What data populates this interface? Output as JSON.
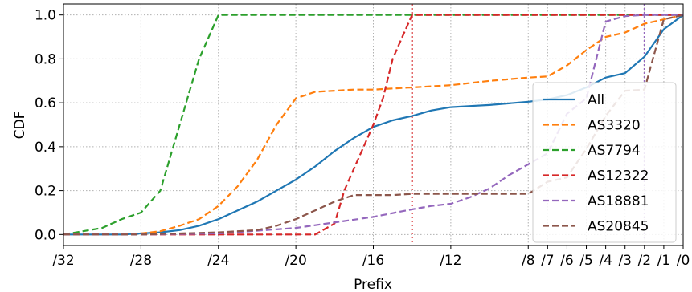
{
  "chart_data": {
    "type": "line",
    "xlabel": "Prefix",
    "ylabel": "CDF",
    "xlim": [
      32,
      0
    ],
    "ylim": [
      -0.05,
      1.05
    ],
    "grid": true,
    "legend_position": "lower-right",
    "x_ticks": [
      {
        "value": 32,
        "label": "/32"
      },
      {
        "value": 28,
        "label": "/28"
      },
      {
        "value": 24,
        "label": "/24"
      },
      {
        "value": 20,
        "label": "/20"
      },
      {
        "value": 16,
        "label": "/16"
      },
      {
        "value": 12,
        "label": "/12"
      },
      {
        "value": 8,
        "label": "/8"
      },
      {
        "value": 7,
        "label": "/7"
      },
      {
        "value": 6,
        "label": "/6"
      },
      {
        "value": 5,
        "label": "/5"
      },
      {
        "value": 4,
        "label": "/4"
      },
      {
        "value": 3,
        "label": "/3"
      },
      {
        "value": 2,
        "label": "/2"
      },
      {
        "value": 1,
        "label": "/1"
      },
      {
        "value": 0,
        "label": "/0"
      }
    ],
    "y_ticks": [
      {
        "value": 0.0,
        "label": "0.0"
      },
      {
        "value": 0.2,
        "label": "0.2"
      },
      {
        "value": 0.4,
        "label": "0.4"
      },
      {
        "value": 0.6,
        "label": "0.6"
      },
      {
        "value": 0.8,
        "label": "0.8"
      },
      {
        "value": 1.0,
        "label": "1.0"
      }
    ],
    "vertical_lines": [
      {
        "x": 14,
        "color": "#d62728"
      },
      {
        "x": 2,
        "color": "#9467bd"
      }
    ],
    "series": [
      {
        "name": "All",
        "color": "#1f77b4",
        "dash": "solid",
        "x": [
          32,
          29,
          28,
          27,
          26,
          25,
          24,
          23,
          22,
          21,
          20,
          19,
          18,
          17,
          16,
          15,
          14,
          13,
          12,
          11,
          10,
          8,
          7,
          6,
          5,
          4,
          3,
          2,
          1,
          0
        ],
        "y": [
          0,
          0,
          0.005,
          0.01,
          0.02,
          0.04,
          0.07,
          0.11,
          0.15,
          0.2,
          0.25,
          0.31,
          0.38,
          0.44,
          0.49,
          0.52,
          0.54,
          0.565,
          0.58,
          0.585,
          0.59,
          0.605,
          0.615,
          0.635,
          0.67,
          0.715,
          0.735,
          0.81,
          0.935,
          1.0
        ]
      },
      {
        "name": "AS3320",
        "color": "#ff7f0e",
        "dash": "dashed",
        "x": [
          32,
          29,
          28,
          27,
          26,
          25,
          24,
          23,
          22,
          21,
          20,
          19,
          18,
          17,
          16,
          15,
          14,
          13,
          12,
          11,
          10,
          8,
          7,
          6,
          5,
          4,
          3,
          2,
          1,
          0
        ],
        "y": [
          0,
          0,
          0.005,
          0.015,
          0.04,
          0.07,
          0.13,
          0.22,
          0.34,
          0.5,
          0.62,
          0.65,
          0.655,
          0.66,
          0.66,
          0.665,
          0.67,
          0.675,
          0.68,
          0.69,
          0.7,
          0.715,
          0.72,
          0.77,
          0.84,
          0.9,
          0.92,
          0.96,
          0.98,
          1.0
        ]
      },
      {
        "name": "AS7794",
        "color": "#2ca02c",
        "dash": "dashed",
        "x": [
          32,
          30,
          29,
          28,
          27,
          26,
          25,
          24,
          23,
          20,
          16,
          12,
          8,
          4,
          0
        ],
        "y": [
          0,
          0.03,
          0.07,
          0.1,
          0.2,
          0.5,
          0.8,
          1.0,
          1.0,
          1.0,
          1.0,
          1.0,
          1.0,
          1.0,
          1.0
        ]
      },
      {
        "name": "AS12322",
        "color": "#d62728",
        "dash": "dashed",
        "x": [
          32,
          24,
          22,
          20,
          19,
          18,
          17.5,
          17,
          16.5,
          16,
          15.5,
          15,
          14.5,
          14,
          12,
          8,
          4,
          0
        ],
        "y": [
          0,
          0,
          0,
          0,
          0,
          0.05,
          0.2,
          0.3,
          0.4,
          0.5,
          0.62,
          0.8,
          0.9,
          1.0,
          1.0,
          1.0,
          1.0,
          1.0
        ]
      },
      {
        "name": "AS18881",
        "color": "#9467bd",
        "dash": "dashed",
        "x": [
          32,
          28,
          24,
          20,
          16,
          14,
          13,
          12,
          11,
          10,
          9,
          8,
          7,
          6,
          5,
          4,
          3,
          2,
          1,
          0
        ],
        "y": [
          0,
          0,
          0.005,
          0.03,
          0.08,
          0.115,
          0.13,
          0.14,
          0.17,
          0.21,
          0.27,
          0.32,
          0.37,
          0.55,
          0.62,
          0.97,
          0.995,
          1.0,
          1.0,
          1.0
        ]
      },
      {
        "name": "AS20845",
        "color": "#8c564b",
        "dash": "dashed",
        "x": [
          32,
          28,
          26,
          24,
          22,
          21,
          20,
          19,
          18,
          17,
          16,
          15,
          14,
          12,
          10,
          9,
          8,
          7,
          6,
          5,
          4,
          3,
          2,
          1,
          0
        ],
        "y": [
          0,
          0,
          0.005,
          0.01,
          0.02,
          0.04,
          0.07,
          0.11,
          0.15,
          0.18,
          0.18,
          0.18,
          0.185,
          0.185,
          0.185,
          0.185,
          0.185,
          0.24,
          0.26,
          0.39,
          0.54,
          0.655,
          0.66,
          0.98,
          1.0
        ]
      }
    ]
  }
}
